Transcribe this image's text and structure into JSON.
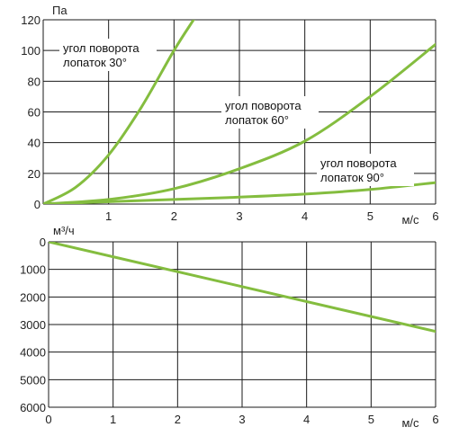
{
  "colors": {
    "curve": "#84bd3f",
    "grid": "#1a1a1a",
    "text": "#222222"
  },
  "chart_data": [
    {
      "type": "line",
      "x_unit": "м/с",
      "y_unit": "Па",
      "xlim": [
        0,
        6
      ],
      "ylim": [
        0,
        120
      ],
      "x_ticks": [
        0,
        1,
        2,
        3,
        4,
        5,
        6
      ],
      "x_tick_labels": [
        "",
        "1",
        "2",
        "3",
        "4",
        "5",
        "6"
      ],
      "y_ticks": [
        0,
        20,
        40,
        60,
        80,
        100,
        120
      ],
      "y_tick_labels": [
        "0",
        "20",
        "40",
        "60",
        "80",
        "100",
        "120"
      ],
      "grid": true,
      "series": [
        {
          "name": "угол поворота лопаток 30°",
          "x": [
            0,
            0.5,
            1.0,
            1.5,
            2.0,
            2.3
          ],
          "y": [
            0,
            11,
            32,
            63,
            100,
            120
          ],
          "label_lines": [
            "угол поворота",
            "лопаток 30°"
          ]
        },
        {
          "name": "угол поворота лопаток 60°",
          "x": [
            0,
            1,
            2,
            3,
            4,
            5,
            6
          ],
          "y": [
            0,
            3,
            10,
            23,
            41,
            70,
            104
          ],
          "label_lines": [
            "угол поворота",
            "лопаток 60°"
          ]
        },
        {
          "name": "угол поворота лопаток 90°",
          "x": [
            0,
            1,
            2,
            3,
            4,
            5,
            6
          ],
          "y": [
            0,
            1.5,
            3,
            4.5,
            6.5,
            9.5,
            14
          ],
          "label_lines": [
            "угол поворота",
            "лопаток 90°"
          ]
        }
      ]
    },
    {
      "type": "line",
      "x_unit": "м/с",
      "y_unit": "м³/ч",
      "xlim": [
        0,
        6
      ],
      "ylim": [
        0,
        6000
      ],
      "y_inverted": true,
      "x_ticks": [
        0,
        1,
        2,
        3,
        4,
        5,
        6
      ],
      "x_tick_labels": [
        "0",
        "1",
        "2",
        "3",
        "4",
        "5",
        "6"
      ],
      "y_ticks": [
        0,
        1000,
        2000,
        3000,
        4000,
        5000,
        6000
      ],
      "y_tick_labels": [
        "0",
        "1000",
        "2000",
        "3000",
        "4000",
        "5000",
        "6000"
      ],
      "grid": true,
      "series": [
        {
          "x": [
            0,
            6
          ],
          "y": [
            0,
            3250
          ]
        }
      ]
    }
  ]
}
